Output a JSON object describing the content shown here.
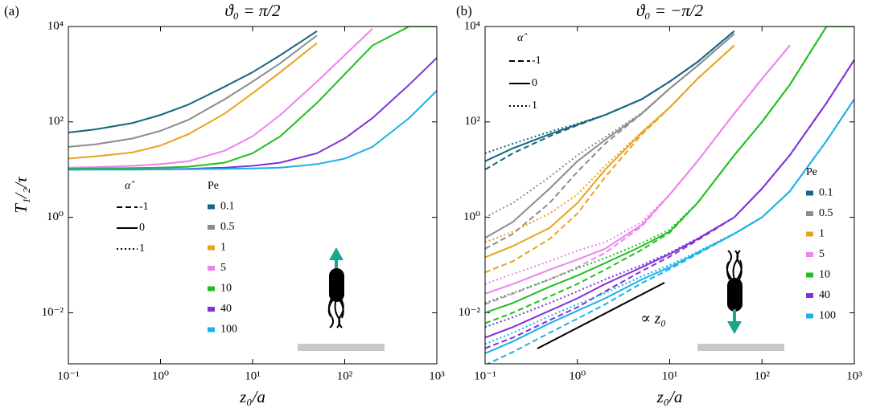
{
  "chart_data": [
    {
      "type": "line",
      "panel_label": "(a)",
      "title": "ϑ₀ = π/2",
      "xlabel": "z₀/a",
      "ylabel": "T₁/₂/τ",
      "xscale": "log",
      "yscale": "log",
      "xlim": [
        0.1,
        1000
      ],
      "ylim": [
        0.00085,
        10000
      ],
      "xticks": [
        {
          "value": 0.1,
          "label": "10⁻¹"
        },
        {
          "value": 1,
          "label": "10⁰"
        },
        {
          "value": 10,
          "label": "10¹"
        },
        {
          "value": 100,
          "label": "10²"
        },
        {
          "value": 1000,
          "label": "10³"
        }
      ],
      "yticks": [
        {
          "value": 0.01,
          "label": "10⁻²"
        },
        {
          "value": 1,
          "label": "10⁰"
        },
        {
          "value": 100,
          "label": "10²"
        },
        {
          "value": 10000,
          "label": "10⁴"
        }
      ],
      "alpha_legend": {
        "title": "α̂",
        "entries": [
          {
            "label": "-1",
            "linestyle": "dashed"
          },
          {
            "label": "0",
            "linestyle": "solid"
          },
          {
            "label": "1",
            "linestyle": "dotted"
          }
        ]
      },
      "legend_title": "Pe",
      "x": [
        0.1,
        0.2,
        0.5,
        1,
        2,
        5,
        10,
        20,
        50,
        100,
        200,
        500,
        1000
      ],
      "series": [
        {
          "name": "0.1",
          "color": "#15667f",
          "values": [
            60,
            70,
            95,
            140,
            230,
            550,
            1100,
            2500,
            8000,
            null,
            null,
            null,
            null
          ]
        },
        {
          "name": "0.5",
          "color": "#8c8c8c",
          "values": [
            30,
            34,
            45,
            65,
            110,
            300,
            700,
            1700,
            6500,
            null,
            null,
            null,
            null
          ]
        },
        {
          "name": "1",
          "color": "#e9a31b",
          "values": [
            17,
            19,
            23,
            32,
            55,
            150,
            400,
            1100,
            4500,
            null,
            null,
            null,
            null
          ]
        },
        {
          "name": "5",
          "color": "#ee82ee",
          "values": [
            11,
            11.3,
            12,
            13,
            15,
            25,
            50,
            140,
            700,
            2500,
            9000,
            null,
            null
          ]
        },
        {
          "name": "10",
          "color": "#1fbf1f",
          "values": [
            10.5,
            10.6,
            10.8,
            11,
            11.5,
            14,
            22,
            50,
            250,
            1000,
            4000,
            10000,
            10000
          ]
        },
        {
          "name": "40",
          "color": "#8032d8",
          "values": [
            10,
            10.1,
            10.1,
            10.2,
            10.4,
            11,
            12,
            14,
            22,
            45,
            120,
            600,
            2200
          ]
        },
        {
          "name": "100",
          "color": "#1cb0e6",
          "values": [
            10,
            10,
            10,
            10.1,
            10.2,
            10.4,
            10.6,
            11,
            13,
            17,
            30,
            120,
            450
          ]
        }
      ]
    },
    {
      "type": "line",
      "panel_label": "(b)",
      "title": "ϑ₀ = −π/2",
      "xlabel": "z₀/a",
      "annotation": "∝ z₀",
      "xscale": "log",
      "yscale": "log",
      "xlim": [
        0.1,
        1000
      ],
      "ylim": [
        0.00085,
        10000
      ],
      "xticks": [
        {
          "value": 0.1,
          "label": "10⁻¹"
        },
        {
          "value": 1,
          "label": "10⁰"
        },
        {
          "value": 10,
          "label": "10¹"
        },
        {
          "value": 100,
          "label": "10²"
        },
        {
          "value": 1000,
          "label": "10³"
        }
      ],
      "yticks": [
        {
          "value": 0.01,
          "label": "10⁻²"
        },
        {
          "value": 1,
          "label": "10⁰"
        },
        {
          "value": 100,
          "label": "10²"
        },
        {
          "value": 10000,
          "label": "10⁴"
        }
      ],
      "alpha_legend": {
        "title": "α̂",
        "entries": [
          {
            "label": "-1",
            "linestyle": "dashed"
          },
          {
            "label": "0",
            "linestyle": "solid"
          },
          {
            "label": "1",
            "linestyle": "dotted"
          }
        ]
      },
      "legend_title": "Pe",
      "x": [
        0.1,
        0.2,
        0.5,
        1,
        2,
        5,
        10,
        20,
        50,
        100,
        200,
        500,
        1000
      ],
      "series": [
        {
          "name": "0.1",
          "color": "#15667f",
          "lines": [
            [
              10,
              22,
              50,
              85,
              140,
              300,
              700,
              1800,
              8000,
              null,
              null,
              null,
              null
            ],
            [
              15,
              28,
              55,
              88,
              140,
              300,
              700,
              1800,
              8000,
              null,
              null,
              null,
              null
            ],
            [
              22,
              35,
              62,
              92,
              140,
              300,
              700,
              1800,
              8000,
              null,
              null,
              null,
              null
            ]
          ]
        },
        {
          "name": "0.5",
          "color": "#8c8c8c",
          "lines": [
            [
              0.22,
              0.45,
              2,
              9,
              35,
              150,
              500,
              1500,
              7000,
              null,
              null,
              null,
              null
            ],
            [
              0.37,
              0.8,
              4,
              15,
              42,
              150,
              500,
              1500,
              7000,
              null,
              null,
              null,
              null
            ],
            [
              1,
              2,
              7,
              20,
              48,
              155,
              500,
              1500,
              7000,
              null,
              null,
              null,
              null
            ]
          ]
        },
        {
          "name": "1",
          "color": "#e9a31b",
          "lines": [
            [
              0.07,
              0.12,
              0.35,
              1.2,
              7,
              55,
              200,
              800,
              4000,
              null,
              null,
              null,
              null
            ],
            [
              0.145,
              0.25,
              0.6,
              2,
              10,
              60,
              200,
              800,
              4000,
              null,
              null,
              null,
              null
            ],
            [
              0.3,
              0.5,
              1.2,
              3,
              12,
              62,
              200,
              800,
              4000,
              null,
              null,
              null,
              null
            ]
          ]
        },
        {
          "name": "5",
          "color": "#ee82ee",
          "lines": [
            [
              0.015,
              0.025,
              0.05,
              0.09,
              0.18,
              0.65,
              3,
              15,
              150,
              800,
              4000,
              null,
              null
            ],
            [
              0.025,
              0.04,
              0.08,
              0.13,
              0.22,
              0.7,
              3,
              15,
              150,
              800,
              4000,
              null,
              null
            ],
            [
              0.04,
              0.065,
              0.12,
              0.2,
              0.3,
              0.8,
              3,
              15,
              150,
              800,
              4000,
              null,
              null
            ]
          ]
        },
        {
          "name": "10",
          "color": "#1fbf1f",
          "lines": [
            [
              0.006,
              0.01,
              0.022,
              0.04,
              0.08,
              0.21,
              0.48,
              2,
              20,
              100,
              600,
              10000,
              10000
            ],
            [
              0.01,
              0.016,
              0.035,
              0.06,
              0.11,
              0.25,
              0.5,
              2,
              20,
              100,
              600,
              10000,
              10000
            ],
            [
              0.016,
              0.026,
              0.05,
              0.085,
              0.14,
              0.29,
              0.55,
              2,
              20,
              100,
              600,
              10000,
              10000
            ]
          ]
        },
        {
          "name": "40",
          "color": "#8032d8",
          "lines": [
            [
              0.0018,
              0.003,
              0.007,
              0.013,
              0.028,
              0.075,
              0.15,
              0.33,
              1,
              4,
              20,
              250,
              2000
            ],
            [
              0.003,
              0.005,
              0.011,
              0.02,
              0.04,
              0.09,
              0.17,
              0.35,
              1,
              4,
              20,
              250,
              2000
            ],
            [
              0.005,
              0.008,
              0.016,
              0.028,
              0.05,
              0.1,
              0.18,
              0.36,
              1,
              4,
              20,
              250,
              2000
            ]
          ]
        },
        {
          "name": "100",
          "color": "#1cb0e6",
          "lines": [
            [
              0.0008,
              0.0015,
              0.0038,
              0.0075,
              0.015,
              0.042,
              0.082,
              0.17,
              0.45,
              1,
              3.5,
              40,
              300
            ],
            [
              0.0014,
              0.0025,
              0.006,
              0.011,
              0.02,
              0.05,
              0.09,
              0.18,
              0.45,
              1,
              3.5,
              40,
              300
            ],
            [
              0.0022,
              0.0038,
              0.0085,
              0.015,
              0.026,
              0.058,
              0.1,
              0.19,
              0.46,
              1,
              3.5,
              40,
              300
            ]
          ]
        }
      ]
    }
  ]
}
